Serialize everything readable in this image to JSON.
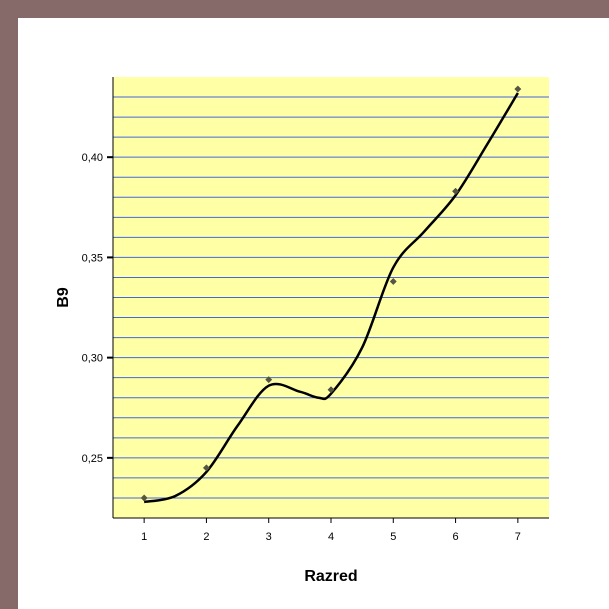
{
  "chart_data": {
    "type": "line",
    "xlabel": "Razred",
    "ylabel": "B9",
    "x_ticks": [
      "1",
      "2",
      "3",
      "4",
      "5",
      "6",
      "7"
    ],
    "y_ticks": [
      "0,25",
      "0,30",
      "0,35",
      "0,40"
    ],
    "y_tick_values": [
      0.25,
      0.3,
      0.35,
      0.4
    ],
    "xlim": [
      0.5,
      7.5
    ],
    "ylim": [
      0.22,
      0.44
    ],
    "series": [
      {
        "type": "scatter",
        "x": [
          1,
          2,
          3,
          4,
          5,
          6,
          7
        ],
        "values": [
          0.23,
          0.245,
          0.289,
          0.284,
          0.338,
          0.383,
          0.434
        ]
      },
      {
        "type": "line",
        "x": [
          1,
          1.5,
          2,
          2.5,
          3,
          3.5,
          3.8,
          4,
          4.5,
          5,
          5.5,
          6,
          6.5,
          7
        ],
        "values": [
          0.228,
          0.231,
          0.243,
          0.266,
          0.286,
          0.283,
          0.28,
          0.282,
          0.305,
          0.345,
          0.363,
          0.381,
          0.406,
          0.432
        ]
      }
    ],
    "grid": "horizontal",
    "colors": {
      "plot_background": "#ffffa6",
      "grid_line": "#4466dd",
      "line": "#000000",
      "marker": "#555544",
      "outer_background": "#866a69"
    }
  }
}
